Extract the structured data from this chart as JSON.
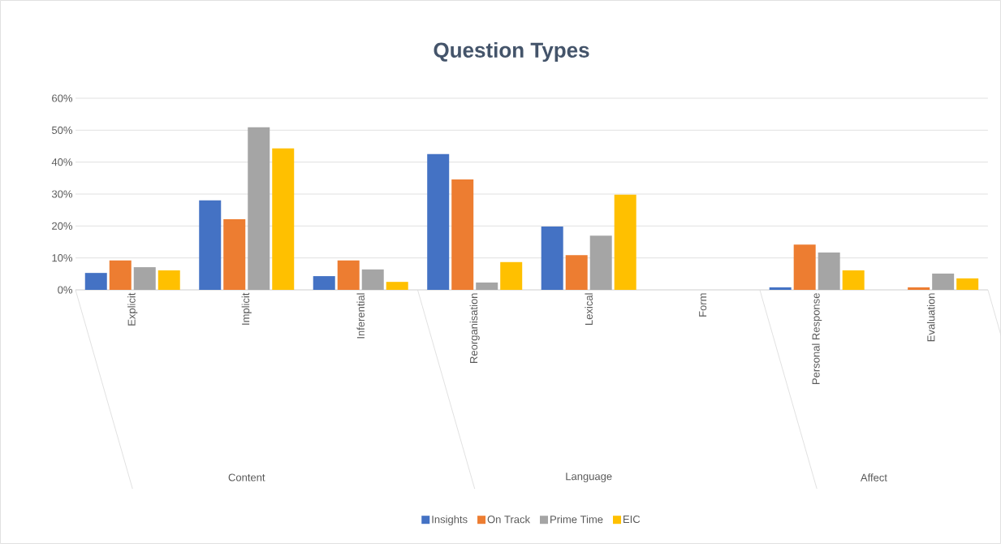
{
  "chart_data": {
    "type": "bar",
    "title": "Question Types",
    "categories": [
      "Explicit",
      "Implicit",
      "Inferential",
      "Reorganisation",
      "Lexical",
      "Form",
      "Personal Response",
      "Evaluation"
    ],
    "series": [
      {
        "name": "Insights",
        "color": "#4472c4",
        "values": [
          5.3,
          28.0,
          4.3,
          42.5,
          19.8,
          0,
          0.8,
          0
        ]
      },
      {
        "name": "On Track",
        "color": "#ed7d31",
        "values": [
          9.2,
          22.1,
          9.2,
          34.6,
          10.9,
          0,
          14.2,
          0.8
        ]
      },
      {
        "name": "Prime Time",
        "color": "#a5a5a5",
        "values": [
          7.1,
          50.9,
          6.4,
          2.3,
          17.0,
          0,
          11.7,
          5.1
        ]
      },
      {
        "name": "EIC",
        "color": "#ffc000",
        "values": [
          6.1,
          44.3,
          2.5,
          8.7,
          29.8,
          0,
          6.1,
          3.6
        ]
      }
    ],
    "ylim": [
      0,
      60
    ],
    "yticks": [
      {
        "value": 0,
        "label": "0%"
      },
      {
        "value": 10,
        "label": "10%"
      },
      {
        "value": 20,
        "label": "20%"
      },
      {
        "value": 30,
        "label": "30%"
      },
      {
        "value": 40,
        "label": "40%"
      },
      {
        "value": 50,
        "label": "50%"
      },
      {
        "value": 60,
        "label": "60%"
      }
    ],
    "annotations": [
      "Content",
      "Language",
      "Affect"
    ],
    "grid": "y",
    "legend": "bottom"
  }
}
